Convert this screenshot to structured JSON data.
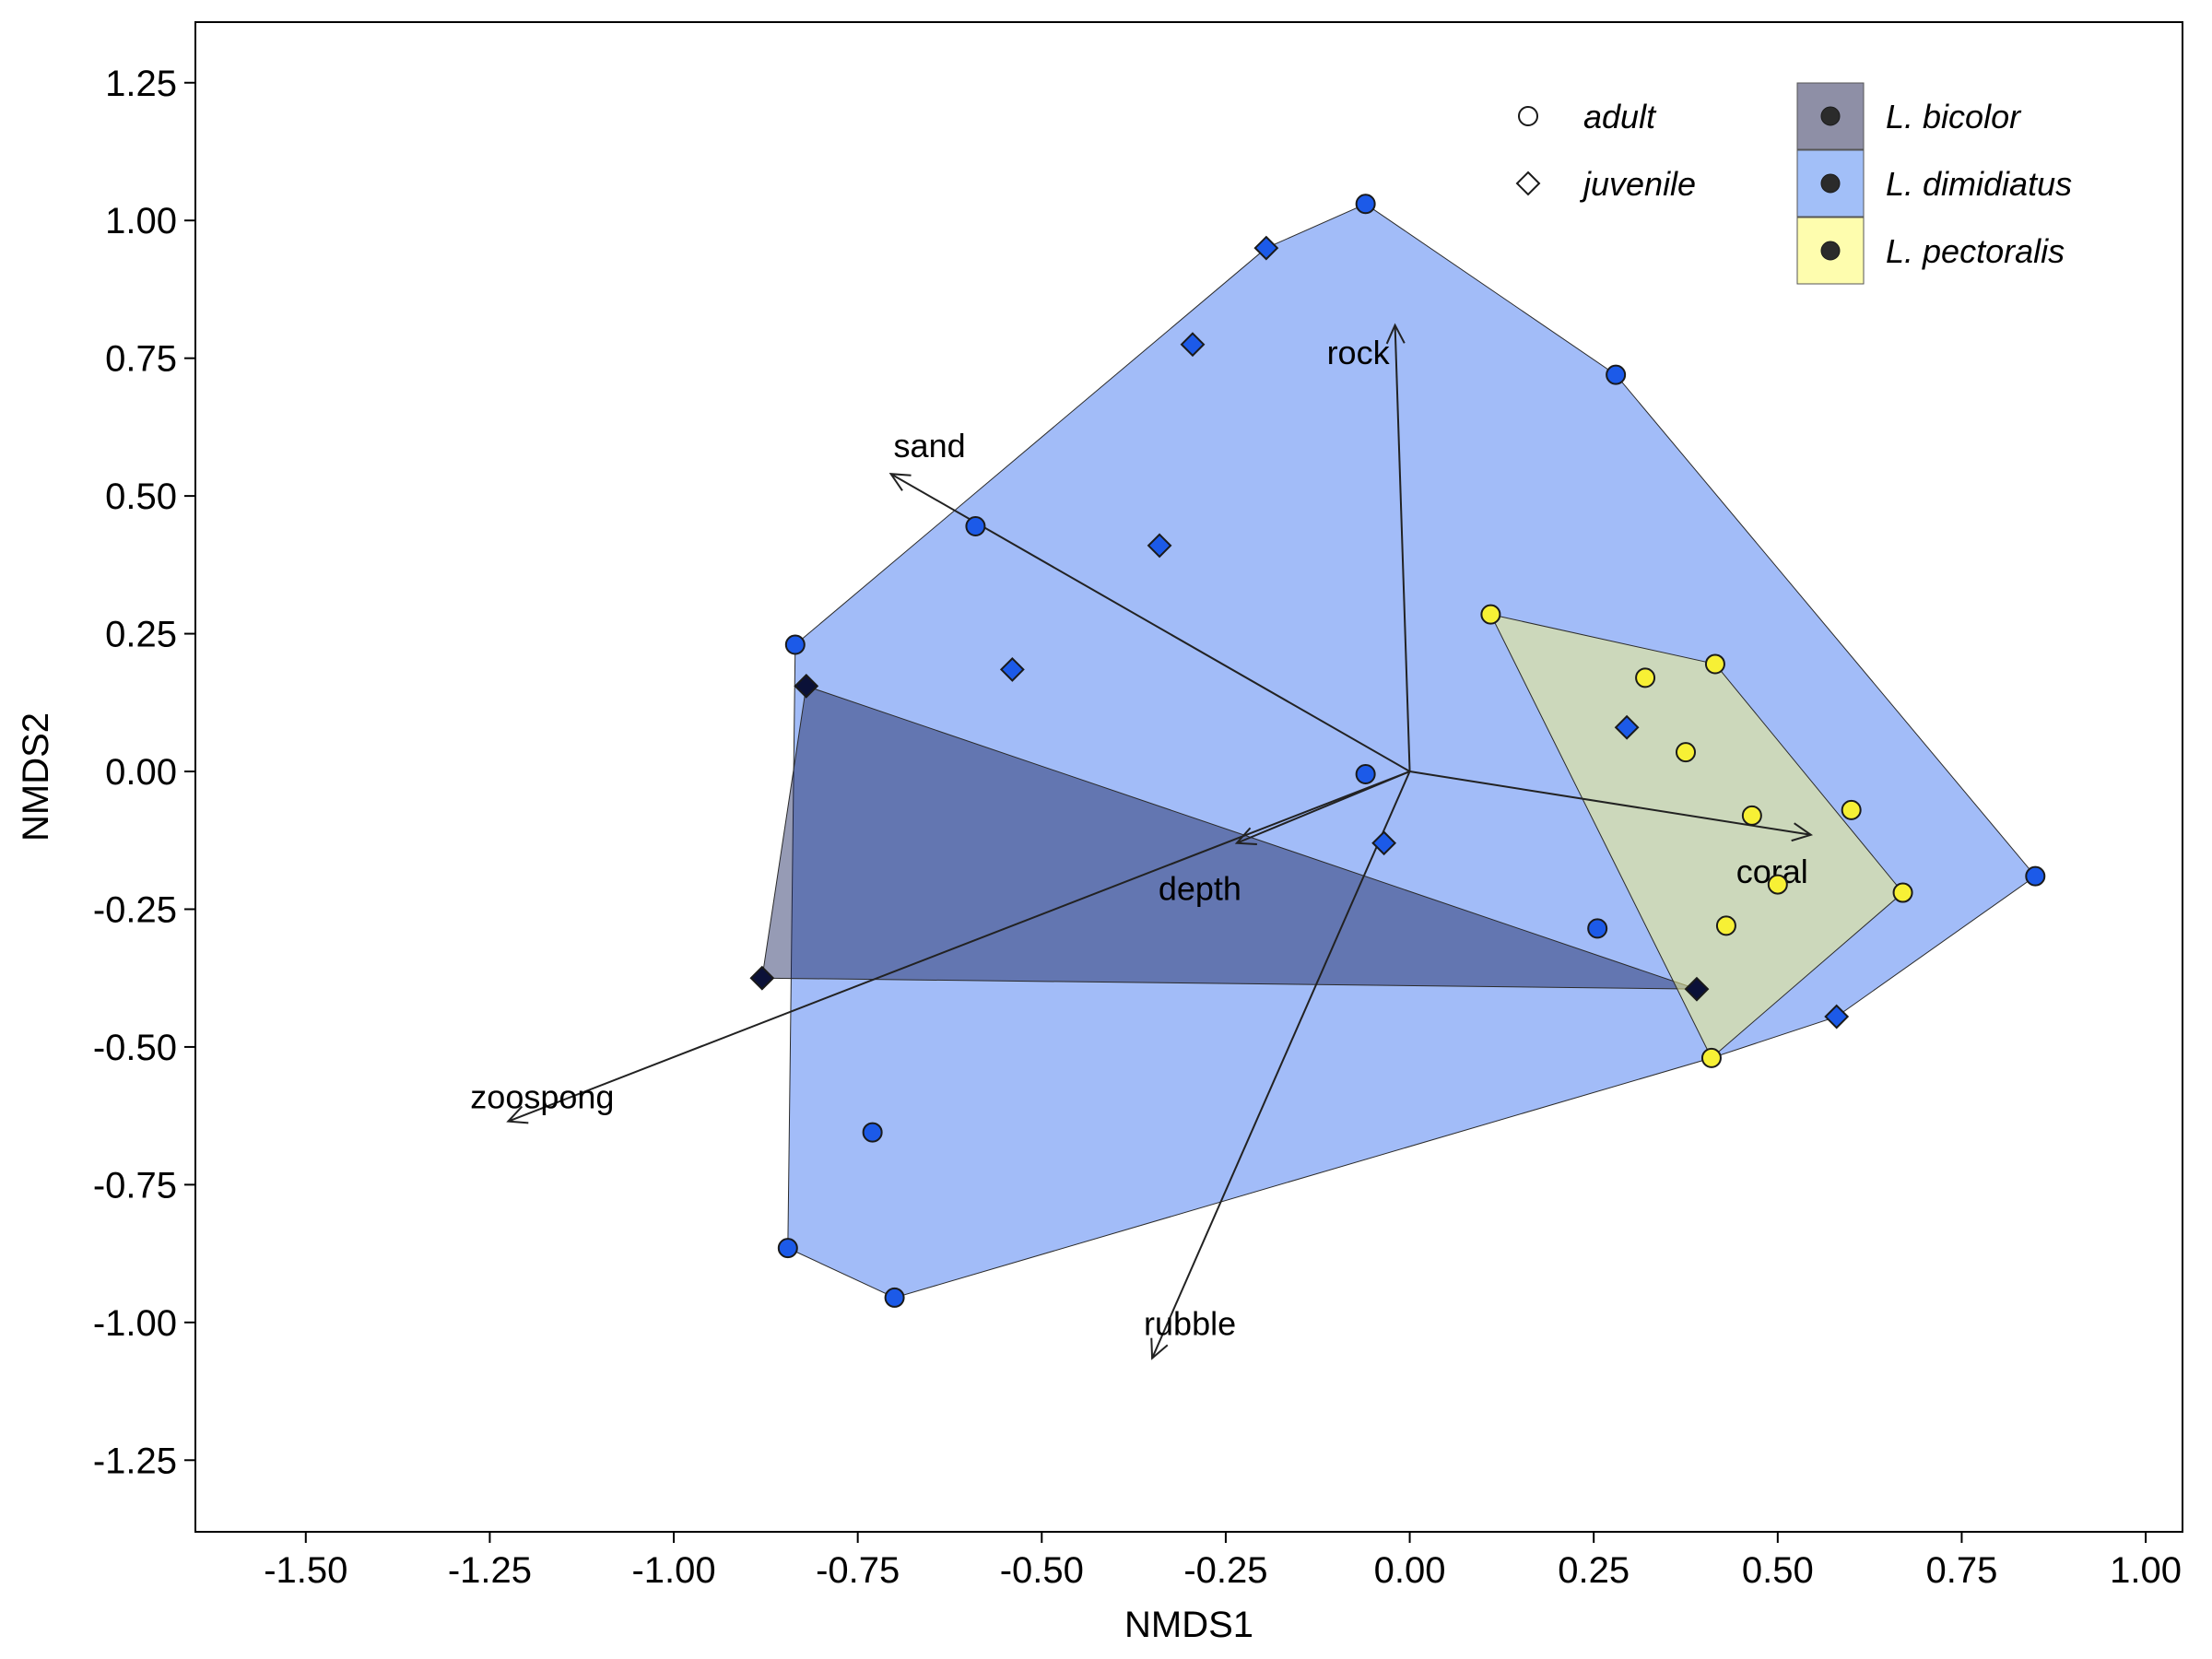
{
  "chart_data": {
    "type": "scatter",
    "xlabel": "NMDS1",
    "ylabel": "NMDS2",
    "xlim": [
      -1.65,
      1.05
    ],
    "ylim": [
      -1.38,
      1.36
    ],
    "xticks": [
      "-1.50",
      "-1.25",
      "-1.00",
      "-0.75",
      "-0.50",
      "-0.25",
      "0.00",
      "0.25",
      "0.50",
      "0.75",
      "1.00"
    ],
    "yticks": [
      "1.25",
      "1.00",
      "0.75",
      "0.50",
      "0.25",
      "0.00",
      "-0.25",
      "-0.50",
      "-0.75",
      "-1.00",
      "-1.25"
    ],
    "grid": false,
    "legend": {
      "placement": "top-right",
      "shape_entries": [
        {
          "label": "adult",
          "shape": "circle"
        },
        {
          "label": "juvenile",
          "shape": "diamond"
        }
      ],
      "species_entries": [
        {
          "label": "L. bicolor",
          "color": "#8e8fa6"
        },
        {
          "label": "L. dimidiatus",
          "color": "#a2bff8"
        },
        {
          "label": "L. pectoralis",
          "color": "#fefdae"
        }
      ]
    },
    "hulls": [
      {
        "species": "L. dimidiatus",
        "fill": "#7b9ff5",
        "opacity": 0.7,
        "points": [
          [
            -0.06,
            1.03
          ],
          [
            0.28,
            0.72
          ],
          [
            0.85,
            -0.19
          ],
          [
            0.58,
            -0.445
          ],
          [
            0.41,
            -0.52
          ],
          [
            -0.7,
            -0.955
          ],
          [
            -0.845,
            -0.865
          ],
          [
            -0.835,
            0.23
          ],
          [
            -0.195,
            0.95
          ]
        ]
      },
      {
        "species": "L. bicolor",
        "fill": "#16225c",
        "opacity": 0.45,
        "points": [
          [
            -0.82,
            0.155
          ],
          [
            -0.88,
            -0.375
          ],
          [
            0.39,
            -0.395
          ]
        ]
      },
      {
        "species": "L. pectoralis",
        "fill": "#eeee88",
        "opacity": 0.55,
        "points": [
          [
            0.11,
            0.285
          ],
          [
            0.415,
            0.195
          ],
          [
            0.67,
            -0.22
          ],
          [
            0.41,
            -0.52
          ]
        ]
      }
    ],
    "vectors": [
      {
        "label": "rock",
        "x": -0.02,
        "y": 0.81
      },
      {
        "label": "sand",
        "x": -0.705,
        "y": 0.54
      },
      {
        "label": "depth",
        "x": -0.235,
        "y": -0.13
      },
      {
        "label": "coral",
        "x": 0.545,
        "y": -0.115
      },
      {
        "label": "zoospong",
        "x": -1.225,
        "y": -0.635
      },
      {
        "label": "rubble",
        "x": -0.35,
        "y": -1.065
      }
    ],
    "series": [
      {
        "species": "L. dimidiatus",
        "stage": "adult",
        "color": "#1c5ae8",
        "points": [
          [
            -0.06,
            1.03
          ],
          [
            0.28,
            0.72
          ],
          [
            -0.59,
            0.445
          ],
          [
            -0.835,
            0.23
          ],
          [
            -0.06,
            -0.005
          ],
          [
            0.255,
            -0.285
          ],
          [
            0.85,
            -0.19
          ],
          [
            -0.73,
            -0.655
          ],
          [
            -0.845,
            -0.865
          ],
          [
            -0.7,
            -0.955
          ]
        ]
      },
      {
        "species": "L. dimidiatus",
        "stage": "juvenile",
        "color": "#1c5ae8",
        "points": [
          [
            -0.195,
            0.95
          ],
          [
            -0.295,
            0.775
          ],
          [
            -0.34,
            0.41
          ],
          [
            -0.54,
            0.185
          ],
          [
            0.295,
            0.08
          ],
          [
            -0.035,
            -0.13
          ],
          [
            0.58,
            -0.445
          ]
        ]
      },
      {
        "species": "L. bicolor",
        "stage": "juvenile",
        "color": "#0b1138",
        "points": [
          [
            -0.82,
            0.155
          ],
          [
            -0.88,
            -0.375
          ],
          [
            0.39,
            -0.395
          ]
        ]
      },
      {
        "species": "L. pectoralis",
        "stage": "adult",
        "color": "#f7f035",
        "points": [
          [
            0.11,
            0.285
          ],
          [
            0.415,
            0.195
          ],
          [
            0.32,
            0.17
          ],
          [
            0.375,
            0.035
          ],
          [
            0.465,
            -0.08
          ],
          [
            0.6,
            -0.07
          ],
          [
            0.5,
            -0.205
          ],
          [
            0.67,
            -0.22
          ],
          [
            0.43,
            -0.28
          ],
          [
            0.41,
            -0.52
          ]
        ]
      }
    ]
  }
}
